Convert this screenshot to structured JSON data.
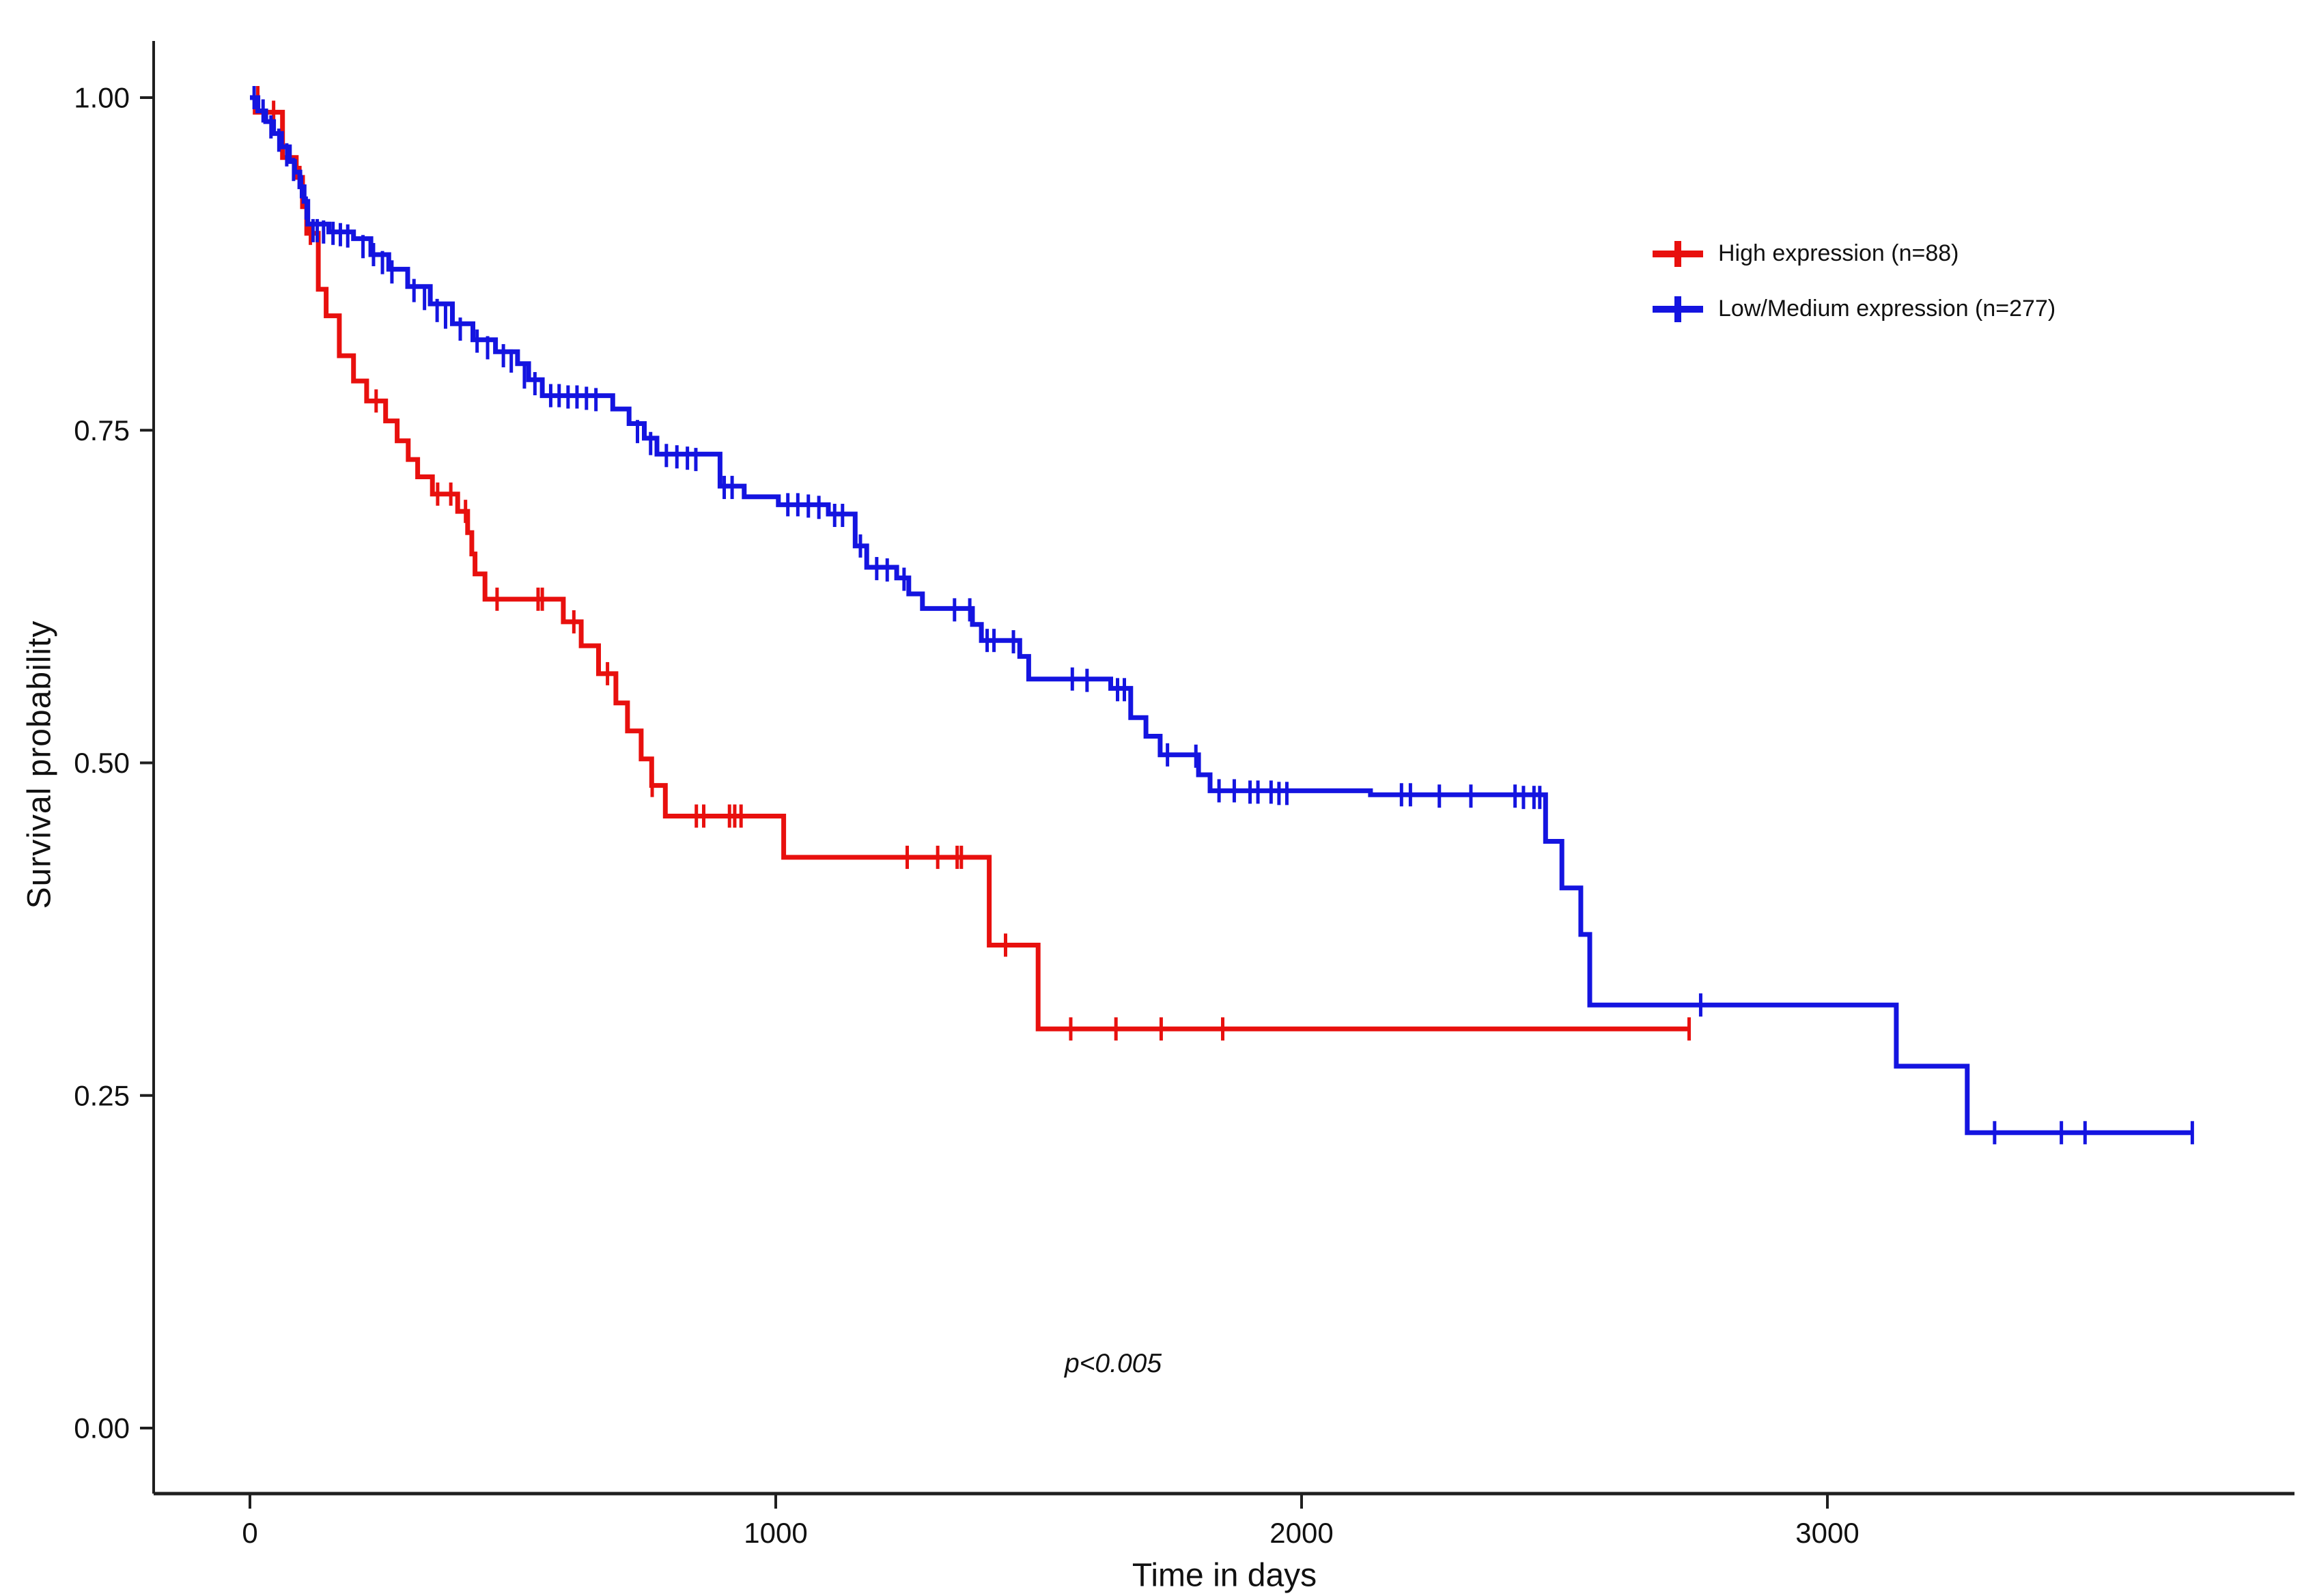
{
  "chart_data": {
    "type": "line",
    "subtype": "kaplan-meier-step",
    "title": "",
    "xlabel": "Time in days",
    "ylabel": "Survival probability",
    "annotation": "p<0.005",
    "grid": false,
    "legend_position": "top-right",
    "x_ticks": [
      0,
      1000,
      2000,
      3000
    ],
    "x_tick_labels": [
      "0",
      "1000",
      "2000",
      "3000"
    ],
    "y_ticks": [
      0.0,
      0.25,
      0.5,
      0.75,
      1.0
    ],
    "y_tick_labels": [
      "0.00",
      "0.25",
      "0.50",
      "0.75",
      "1.00"
    ],
    "xlim": [
      0,
      3890
    ],
    "ylim": [
      0,
      1.0
    ],
    "series": [
      {
        "name": "High expression (n=88)",
        "color": "#e8100e",
        "end_day": 2737,
        "steps": [
          [
            0,
            1.0
          ],
          [
            10,
            0.989
          ],
          [
            62,
            0.955
          ],
          [
            88,
            0.94
          ],
          [
            100,
            0.918
          ],
          [
            108,
            0.898
          ],
          [
            130,
            0.856
          ],
          [
            145,
            0.836
          ],
          [
            170,
            0.806
          ],
          [
            197,
            0.787
          ],
          [
            222,
            0.772
          ],
          [
            258,
            0.757
          ],
          [
            280,
            0.742
          ],
          [
            301,
            0.728
          ],
          [
            319,
            0.715
          ],
          [
            347,
            0.702
          ],
          [
            395,
            0.689
          ],
          [
            414,
            0.673
          ],
          [
            422,
            0.657
          ],
          [
            428,
            0.642
          ],
          [
            447,
            0.623
          ],
          [
            596,
            0.606
          ],
          [
            630,
            0.588
          ],
          [
            663,
            0.567
          ],
          [
            696,
            0.545
          ],
          [
            718,
            0.524
          ],
          [
            744,
            0.503
          ],
          [
            764,
            0.483
          ],
          [
            790,
            0.46
          ],
          [
            1015,
            0.429
          ],
          [
            1406,
            0.363
          ],
          [
            1499,
            0.3
          ]
        ],
        "censors": [
          [
            15,
            1.0
          ],
          [
            45,
            0.989
          ],
          [
            95,
            0.94
          ],
          [
            115,
            0.898
          ],
          [
            240,
            0.772
          ],
          [
            357,
            0.702
          ],
          [
            382,
            0.702
          ],
          [
            410,
            0.689
          ],
          [
            470,
            0.623
          ],
          [
            548,
            0.623
          ],
          [
            556,
            0.623
          ],
          [
            616,
            0.606
          ],
          [
            680,
            0.567
          ],
          [
            765,
            0.483
          ],
          [
            849,
            0.46
          ],
          [
            863,
            0.46
          ],
          [
            912,
            0.46
          ],
          [
            922,
            0.46
          ],
          [
            934,
            0.46
          ],
          [
            1250,
            0.429
          ],
          [
            1308,
            0.429
          ],
          [
            1345,
            0.429
          ],
          [
            1353,
            0.429
          ],
          [
            1437,
            0.363
          ],
          [
            1561,
            0.3
          ],
          [
            1647,
            0.3
          ],
          [
            1733,
            0.3
          ],
          [
            1850,
            0.3
          ],
          [
            2737,
            0.3
          ]
        ]
      },
      {
        "name": "Low/Medium expression (n=277)",
        "color": "#1414e0",
        "end_day": 3694,
        "steps": [
          [
            0,
            1.0
          ],
          [
            15,
            0.99
          ],
          [
            30,
            0.982
          ],
          [
            45,
            0.973
          ],
          [
            60,
            0.963
          ],
          [
            75,
            0.952
          ],
          [
            85,
            0.944
          ],
          [
            95,
            0.933
          ],
          [
            103,
            0.922
          ],
          [
            110,
            0.905
          ],
          [
            150,
            0.899
          ],
          [
            197,
            0.894
          ],
          [
            230,
            0.882
          ],
          [
            264,
            0.871
          ],
          [
            300,
            0.858
          ],
          [
            343,
            0.845
          ],
          [
            385,
            0.83
          ],
          [
            424,
            0.818
          ],
          [
            467,
            0.809
          ],
          [
            509,
            0.8
          ],
          [
            530,
            0.788
          ],
          [
            556,
            0.776
          ],
          [
            690,
            0.766
          ],
          [
            721,
            0.755
          ],
          [
            750,
            0.744
          ],
          [
            774,
            0.732
          ],
          [
            894,
            0.708
          ],
          [
            940,
            0.7
          ],
          [
            1005,
            0.694
          ],
          [
            1100,
            0.687
          ],
          [
            1151,
            0.663
          ],
          [
            1173,
            0.647
          ],
          [
            1230,
            0.639
          ],
          [
            1253,
            0.627
          ],
          [
            1279,
            0.616
          ],
          [
            1374,
            0.604
          ],
          [
            1391,
            0.592
          ],
          [
            1464,
            0.58
          ],
          [
            1481,
            0.563
          ],
          [
            1637,
            0.556
          ],
          [
            1675,
            0.534
          ],
          [
            1704,
            0.52
          ],
          [
            1731,
            0.506
          ],
          [
            1804,
            0.491
          ],
          [
            1826,
            0.479
          ],
          [
            2131,
            0.476
          ],
          [
            2464,
            0.441
          ],
          [
            2495,
            0.406
          ],
          [
            2531,
            0.371
          ],
          [
            2548,
            0.318
          ],
          [
            3131,
            0.272
          ],
          [
            3266,
            0.222
          ]
        ],
        "censors": [
          [
            8,
            1.0
          ],
          [
            25,
            0.99
          ],
          [
            40,
            0.978
          ],
          [
            55,
            0.968
          ],
          [
            70,
            0.957
          ],
          [
            83,
            0.946
          ],
          [
            98,
            0.933
          ],
          [
            107,
            0.917
          ],
          [
            120,
            0.9
          ],
          [
            128,
            0.9
          ],
          [
            140,
            0.899
          ],
          [
            158,
            0.898
          ],
          [
            172,
            0.897
          ],
          [
            186,
            0.896
          ],
          [
            215,
            0.888
          ],
          [
            235,
            0.882
          ],
          [
            252,
            0.876
          ],
          [
            270,
            0.869
          ],
          [
            312,
            0.855
          ],
          [
            332,
            0.849
          ],
          [
            356,
            0.84
          ],
          [
            372,
            0.835
          ],
          [
            400,
            0.826
          ],
          [
            432,
            0.817
          ],
          [
            452,
            0.812
          ],
          [
            482,
            0.806
          ],
          [
            497,
            0.802
          ],
          [
            522,
            0.79
          ],
          [
            542,
            0.785
          ],
          [
            572,
            0.776
          ],
          [
            588,
            0.776
          ],
          [
            605,
            0.775
          ],
          [
            622,
            0.775
          ],
          [
            640,
            0.774
          ],
          [
            658,
            0.773
          ],
          [
            737,
            0.749
          ],
          [
            762,
            0.74
          ],
          [
            792,
            0.731
          ],
          [
            812,
            0.73
          ],
          [
            832,
            0.729
          ],
          [
            848,
            0.728
          ],
          [
            902,
            0.707
          ],
          [
            917,
            0.707
          ],
          [
            1023,
            0.694
          ],
          [
            1042,
            0.694
          ],
          [
            1062,
            0.693
          ],
          [
            1082,
            0.692
          ],
          [
            1112,
            0.686
          ],
          [
            1127,
            0.686
          ],
          [
            1161,
            0.663
          ],
          [
            1192,
            0.646
          ],
          [
            1212,
            0.645
          ],
          [
            1244,
            0.638
          ],
          [
            1340,
            0.615
          ],
          [
            1369,
            0.615
          ],
          [
            1402,
            0.592
          ],
          [
            1415,
            0.592
          ],
          [
            1452,
            0.591
          ],
          [
            1564,
            0.563
          ],
          [
            1592,
            0.562
          ],
          [
            1650,
            0.555
          ],
          [
            1663,
            0.555
          ],
          [
            1745,
            0.506
          ],
          [
            1799,
            0.505
          ],
          [
            1843,
            0.479
          ],
          [
            1872,
            0.479
          ],
          [
            1902,
            0.478
          ],
          [
            1917,
            0.478
          ],
          [
            1942,
            0.478
          ],
          [
            1957,
            0.477
          ],
          [
            1972,
            0.477
          ],
          [
            2190,
            0.476
          ],
          [
            2207,
            0.476
          ],
          [
            2262,
            0.475
          ],
          [
            2322,
            0.475
          ],
          [
            2406,
            0.475
          ],
          [
            2422,
            0.474
          ],
          [
            2442,
            0.474
          ],
          [
            2453,
            0.474
          ],
          [
            2759,
            0.318
          ],
          [
            3318,
            0.222
          ],
          [
            3445,
            0.222
          ],
          [
            3490,
            0.222
          ],
          [
            3694,
            0.222
          ]
        ]
      }
    ]
  }
}
